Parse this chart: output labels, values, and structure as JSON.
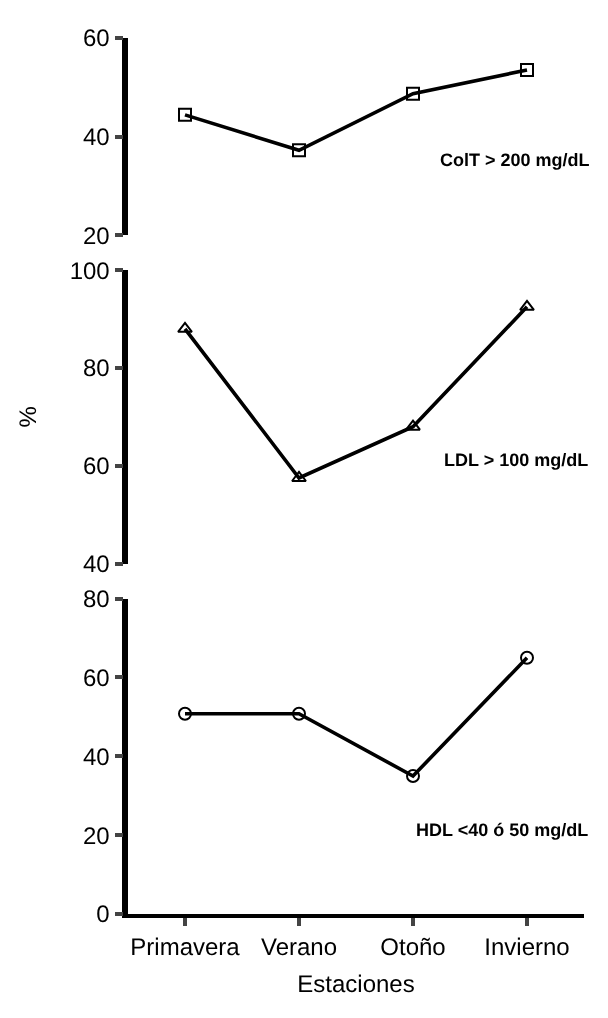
{
  "chart_data": [
    {
      "type": "line",
      "categories": [
        "Primavera",
        "Verano",
        "Otoño",
        "Invierno"
      ],
      "series": [
        {
          "color": "#000000",
          "values": [
            44.4,
            37.2,
            48.7,
            53.5
          ]
        }
      ],
      "marker": "square",
      "ylim": [
        20,
        60
      ],
      "yticks": [
        20,
        40,
        60
      ],
      "tick_labels": "y",
      "annotations": [
        "ColT > 200 mg/dL"
      ]
    },
    {
      "type": "line",
      "categories": [
        "Primavera",
        "Verano",
        "Otoño",
        "Invierno"
      ],
      "series": [
        {
          "color": "#000000",
          "values": [
            88,
            57.5,
            68,
            92.5
          ]
        }
      ],
      "marker": "triangle",
      "ylabel": "%",
      "ylim": [
        40,
        100
      ],
      "yticks": [
        40,
        60,
        80,
        100
      ],
      "tick_labels": "y",
      "annotations": [
        "LDL > 100 mg/dL"
      ]
    },
    {
      "type": "line",
      "categories": [
        "Primavera",
        "Verano",
        "Otoño",
        "Invierno"
      ],
      "series": [
        {
          "color": "#000000",
          "values": [
            50.8,
            50.8,
            35,
            65
          ]
        }
      ],
      "marker": "circle",
      "xlabel": "Estaciones",
      "ylim": [
        0,
        80
      ],
      "yticks": [
        0,
        20,
        40,
        60,
        80
      ],
      "annotations": [
        "HDL <40 ó 50 mg/dL"
      ]
    }
  ]
}
